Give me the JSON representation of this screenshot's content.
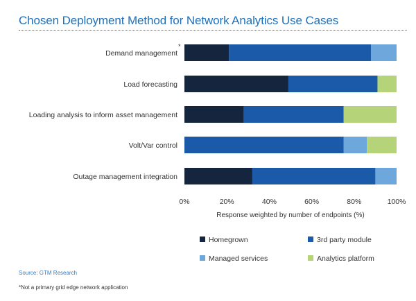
{
  "title": "Chosen Deployment Method for Network Analytics Use Cases",
  "source": "Source: GTM Research",
  "footnote": "*Not a primary grid edge network application",
  "chart_data": {
    "type": "bar",
    "orientation": "horizontal",
    "stacked": true,
    "title": "Chosen Deployment Method for Network Analytics Use Cases",
    "xlabel": "Response weighted by number of endpoints (%)",
    "ylabel": "",
    "xlim": [
      0,
      100
    ],
    "xticks": [
      "0%",
      "20%",
      "40%",
      "60%",
      "80%",
      "100%"
    ],
    "categories": [
      "Demand management",
      "Load forecasting",
      "Loading analysis to inform asset management",
      "Volt/Var control",
      "Outage management integration"
    ],
    "category_markers": [
      "*",
      "",
      "",
      "",
      ""
    ],
    "series": [
      {
        "name": "Homegrown",
        "color": "#14253d",
        "values": [
          21,
          49,
          28,
          0,
          32
        ]
      },
      {
        "name": "3rd party module",
        "color": "#1b5aa8",
        "values": [
          67,
          42,
          47,
          75,
          58
        ]
      },
      {
        "name": "Managed services",
        "color": "#6ea7dc",
        "values": [
          12,
          0,
          0,
          11,
          10
        ]
      },
      {
        "name": "Analytics platform",
        "color": "#b5d479",
        "values": [
          0,
          9,
          25,
          14,
          0
        ]
      }
    ],
    "legend_placement": "bottom",
    "grid": false
  }
}
